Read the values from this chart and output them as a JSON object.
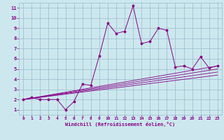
{
  "xlabel": "Windchill (Refroidissement éolien,°C)",
  "bg_color": "#cce8ee",
  "line_color": "#880088",
  "grid_color": "#99bbcc",
  "xlim": [
    -0.5,
    23.5
  ],
  "ylim": [
    0.5,
    11.5
  ],
  "xticks": [
    0,
    1,
    2,
    3,
    4,
    5,
    6,
    7,
    8,
    9,
    10,
    11,
    12,
    13,
    14,
    15,
    16,
    17,
    18,
    19,
    20,
    21,
    22,
    23
  ],
  "yticks": [
    1,
    2,
    3,
    4,
    5,
    6,
    7,
    8,
    9,
    10,
    11
  ],
  "main_series_x": [
    0,
    1,
    2,
    3,
    4,
    5,
    6,
    7,
    8,
    9,
    10,
    11,
    12,
    13,
    14,
    15,
    16,
    17,
    18,
    19,
    20,
    21,
    22,
    23
  ],
  "main_series_y": [
    2.0,
    2.2,
    2.0,
    2.0,
    2.0,
    1.0,
    1.8,
    3.5,
    3.4,
    6.3,
    9.5,
    8.5,
    8.7,
    11.2,
    7.5,
    7.7,
    9.0,
    8.8,
    5.2,
    5.3,
    5.0,
    6.2,
    5.1,
    5.3
  ],
  "linear_lines": [
    {
      "x": [
        0,
        23
      ],
      "y": [
        2.0,
        5.3
      ]
    },
    {
      "x": [
        0,
        23
      ],
      "y": [
        2.0,
        5.0
      ]
    },
    {
      "x": [
        0,
        23
      ],
      "y": [
        2.0,
        4.7
      ]
    },
    {
      "x": [
        0,
        23
      ],
      "y": [
        2.0,
        4.4
      ]
    }
  ]
}
